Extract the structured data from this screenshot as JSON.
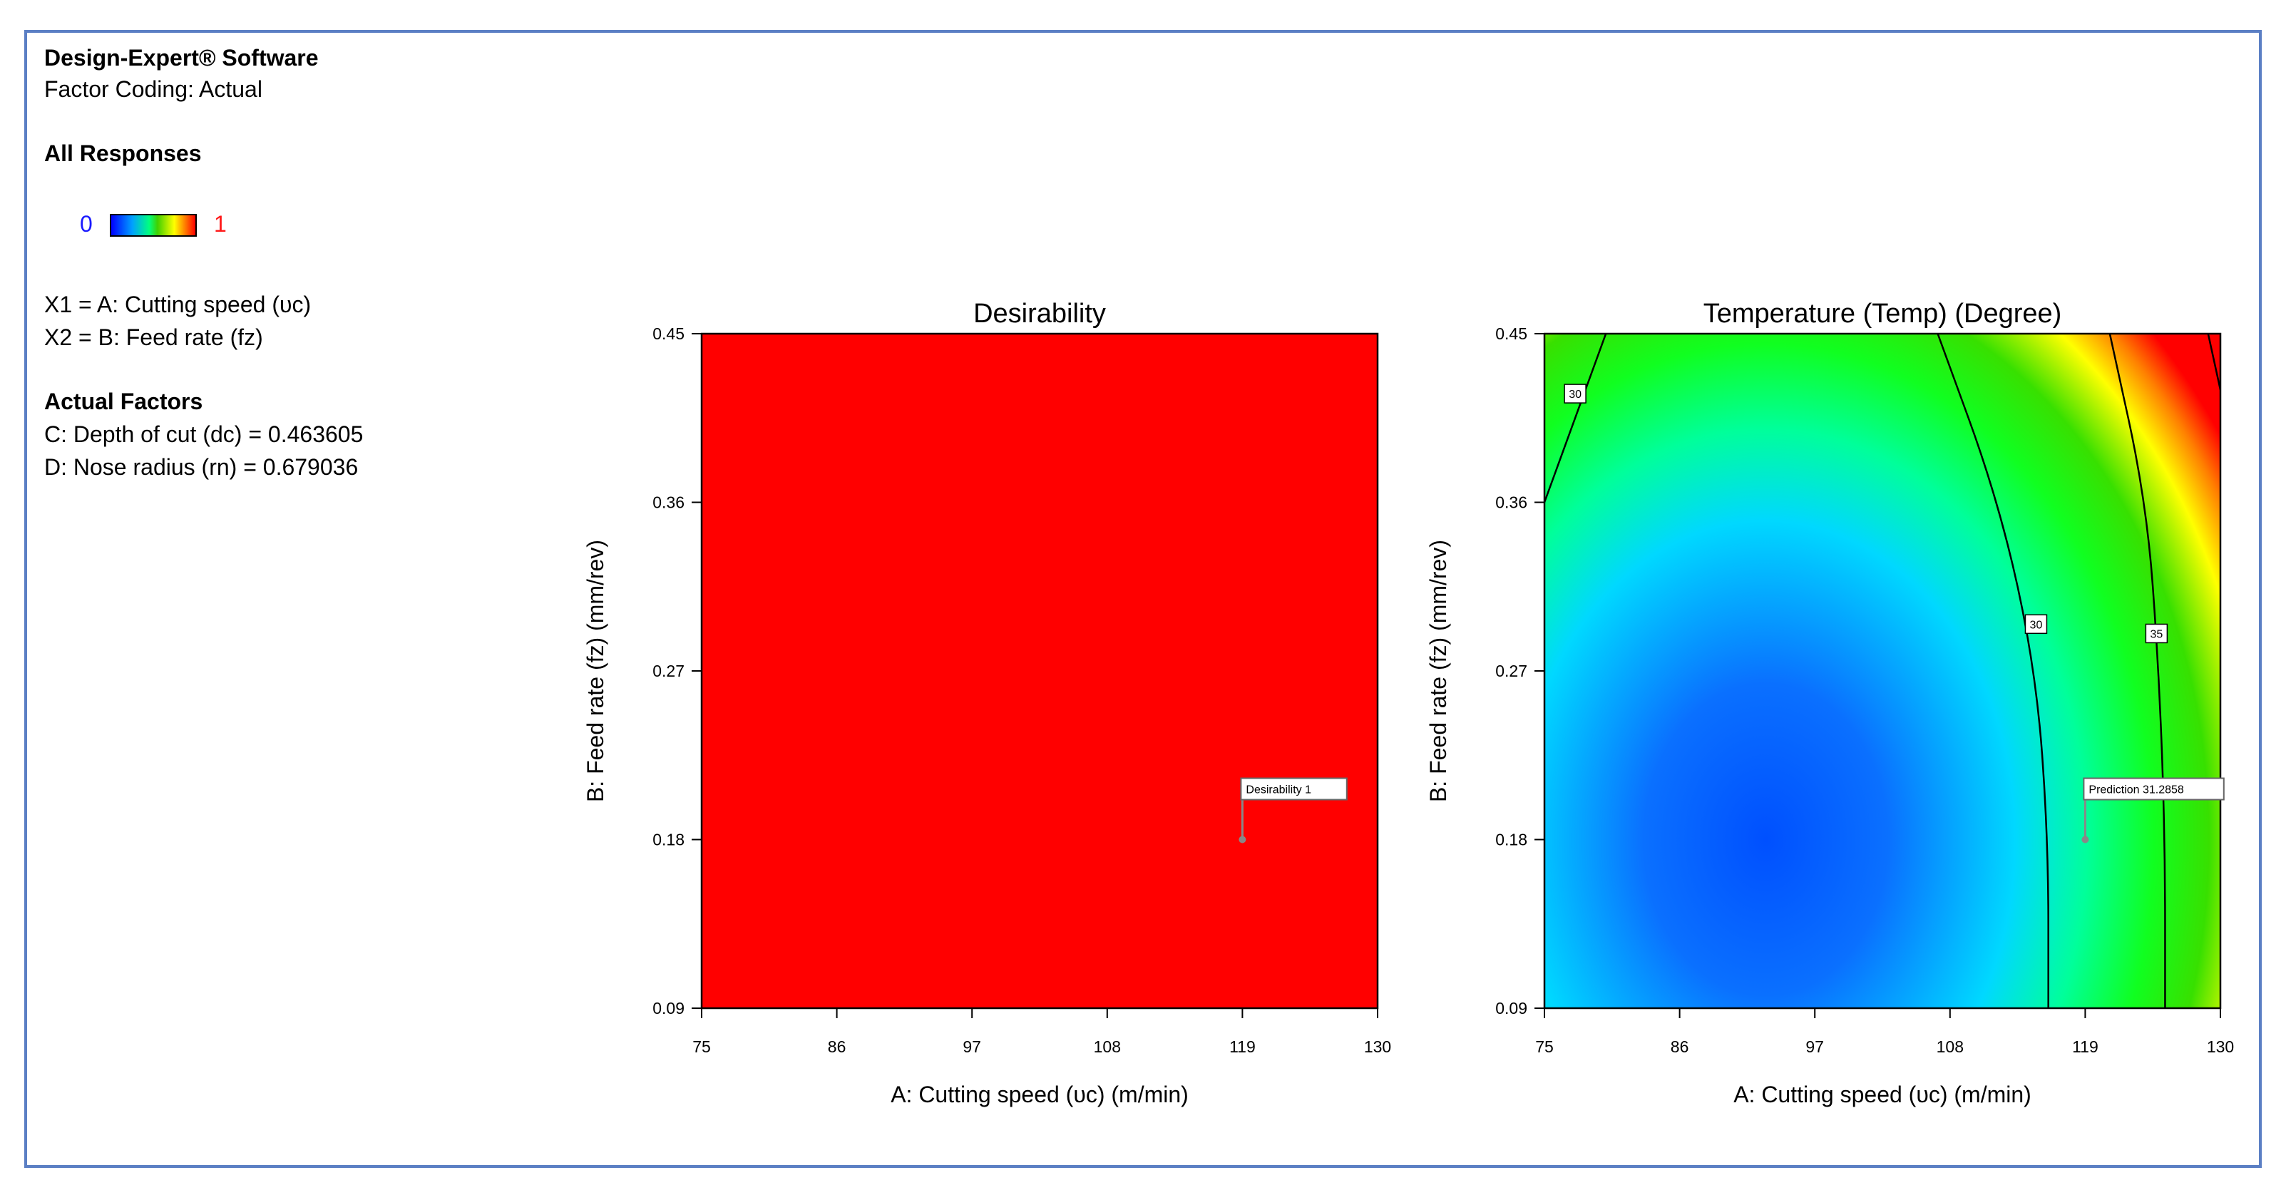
{
  "software_title": "Design-Expert® Software",
  "factor_coding": "Factor Coding: Actual",
  "all_responses_heading": "All Responses",
  "legend": {
    "min_label": "0",
    "max_label": "1"
  },
  "factor_defs": [
    "X1 = A: Cutting speed (υc)",
    "X2 = B: Feed rate (fz)"
  ],
  "actual_factors_heading": "Actual Factors",
  "actual_factors": [
    "C: Depth of cut (dc) = 0.463605",
    "D: Nose radius (rn) = 0.679036"
  ],
  "chart_data": [
    {
      "type": "heatmap",
      "title": "Desirability",
      "xlabel": "A: Cutting speed (υc) (m/min)",
      "ylabel": "B: Feed rate (fz) (mm/rev)",
      "xlim": [
        75,
        130
      ],
      "ylim": [
        0.09,
        0.45
      ],
      "x_ticks": [
        "75",
        "86",
        "97",
        "108",
        "119",
        "130"
      ],
      "y_ticks": [
        "0.09",
        "0.18",
        "0.27",
        "0.36",
        "0.45"
      ],
      "fill_value": 1,
      "fill_color": "#ff0000",
      "flag": {
        "label": "Desirability 1",
        "x": 119,
        "y": 0.18
      }
    },
    {
      "type": "heatmap",
      "title": "Temperature (Temp) (Degree)",
      "xlabel": "A: Cutting speed (υc) (m/min)",
      "ylabel": "B: Feed rate (fz) (mm/rev)",
      "xlim": [
        75,
        130
      ],
      "ylim": [
        0.09,
        0.45
      ],
      "x_ticks": [
        "75",
        "86",
        "97",
        "108",
        "119",
        "130"
      ],
      "y_ticks": [
        "0.09",
        "0.18",
        "0.27",
        "0.36",
        "0.45"
      ],
      "minimum_region": {
        "x": 93,
        "y": 0.18
      },
      "contours": [
        {
          "label": "30",
          "points": [
            [
              80,
              0.45
            ],
            [
              75,
              0.36
            ]
          ]
        },
        {
          "label": "30",
          "points": [
            [
              107,
              0.45
            ],
            [
              112,
              0.36
            ],
            [
              115,
              0.27
            ],
            [
              116,
              0.18
            ],
            [
              116,
              0.09
            ]
          ]
        },
        {
          "label": "35",
          "points": [
            [
              121,
              0.45
            ],
            [
              124,
              0.36
            ],
            [
              125,
              0.27
            ],
            [
              125.5,
              0.18
            ],
            [
              125.5,
              0.09
            ]
          ]
        },
        {
          "label": "",
          "points": [
            [
              129,
              0.45
            ],
            [
              130,
              0.42
            ]
          ]
        }
      ],
      "contour_labels": [
        {
          "label": "30",
          "x": 77.5,
          "y": 0.418
        },
        {
          "label": "30",
          "x": 115,
          "y": 0.295
        },
        {
          "label": "35",
          "x": 124.8,
          "y": 0.29
        }
      ],
      "flag": {
        "label": "Prediction  31.2858",
        "x": 119,
        "y": 0.18
      }
    }
  ]
}
